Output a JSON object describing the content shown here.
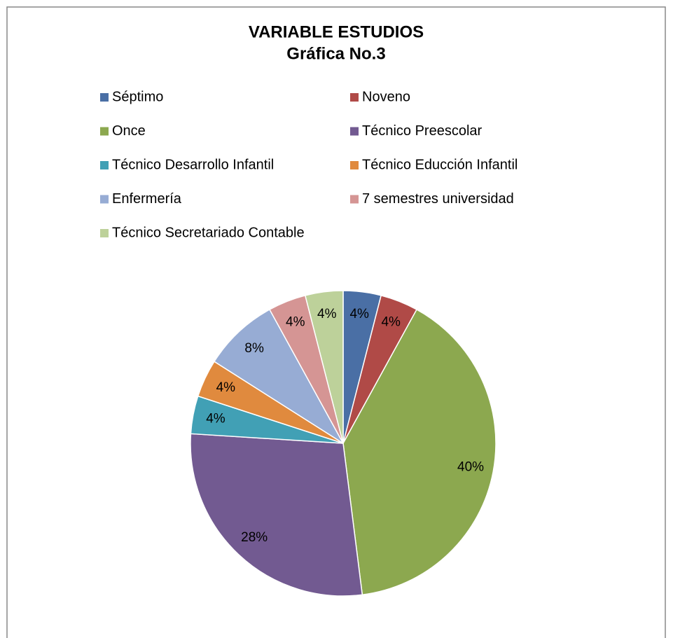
{
  "chart_data": {
    "type": "pie",
    "title": "VARIABLE ESTUDIOS",
    "subtitle": "Gráfica No.3",
    "categories": [
      "Séptimo",
      "Noveno",
      "Once",
      "Técnico Preescolar",
      "Técnico Desarrollo Infantil",
      "Técnico Educción Infantil",
      "Enfermería",
      "7 semestres universidad",
      "Técnico Secretariado Contable"
    ],
    "values": [
      4,
      4,
      40,
      28,
      4,
      4,
      8,
      4,
      4
    ],
    "value_labels": [
      "4%",
      "4%",
      "40%",
      "28%",
      "4%",
      "4%",
      "8%",
      "4%",
      "4%"
    ],
    "colors": [
      "#4a6fa5",
      "#b04a47",
      "#8ca84f",
      "#725a91",
      "#41a0b5",
      "#e08a3e",
      "#97acd4",
      "#d59594",
      "#bdd19a"
    ],
    "legend": "top"
  }
}
